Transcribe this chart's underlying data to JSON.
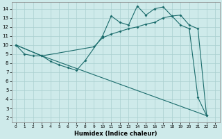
{
  "xlabel": "Humidex (Indice chaleur)",
  "bg_color": "#ceeaea",
  "line_color": "#1a6b6b",
  "grid_color": "#aacfcf",
  "xlim": [
    -0.5,
    23.5
  ],
  "ylim": [
    1.5,
    14.7
  ],
  "xticks": [
    0,
    1,
    2,
    3,
    4,
    5,
    6,
    7,
    8,
    9,
    10,
    11,
    12,
    13,
    14,
    15,
    16,
    17,
    18,
    19,
    20,
    21,
    22,
    23
  ],
  "yticks": [
    2,
    3,
    4,
    5,
    6,
    7,
    8,
    9,
    10,
    11,
    12,
    13,
    14
  ],
  "line1_x": [
    0,
    1,
    2,
    3,
    4,
    5,
    6,
    7,
    8,
    10,
    11,
    12,
    13,
    14,
    15,
    16,
    17,
    18,
    19,
    20,
    21,
    22
  ],
  "line1_y": [
    10,
    9,
    8.8,
    8.8,
    8.2,
    7.8,
    7.5,
    7.2,
    8.3,
    11.0,
    13.2,
    12.5,
    12.2,
    14.3,
    13.3,
    14.0,
    14.2,
    13.2,
    12.2,
    11.8,
    4.2,
    2.2
  ],
  "line2_x": [
    0,
    3,
    9,
    10,
    11,
    12,
    13,
    14,
    15,
    16,
    17,
    18,
    19,
    20,
    21,
    22
  ],
  "line2_y": [
    10,
    8.8,
    9.8,
    10.8,
    11.2,
    11.5,
    11.8,
    12.0,
    12.3,
    12.5,
    13.0,
    13.2,
    13.3,
    12.2,
    11.8,
    2.2
  ],
  "line3_x": [
    0,
    3,
    22
  ],
  "line3_y": [
    10,
    8.8,
    2.2
  ]
}
